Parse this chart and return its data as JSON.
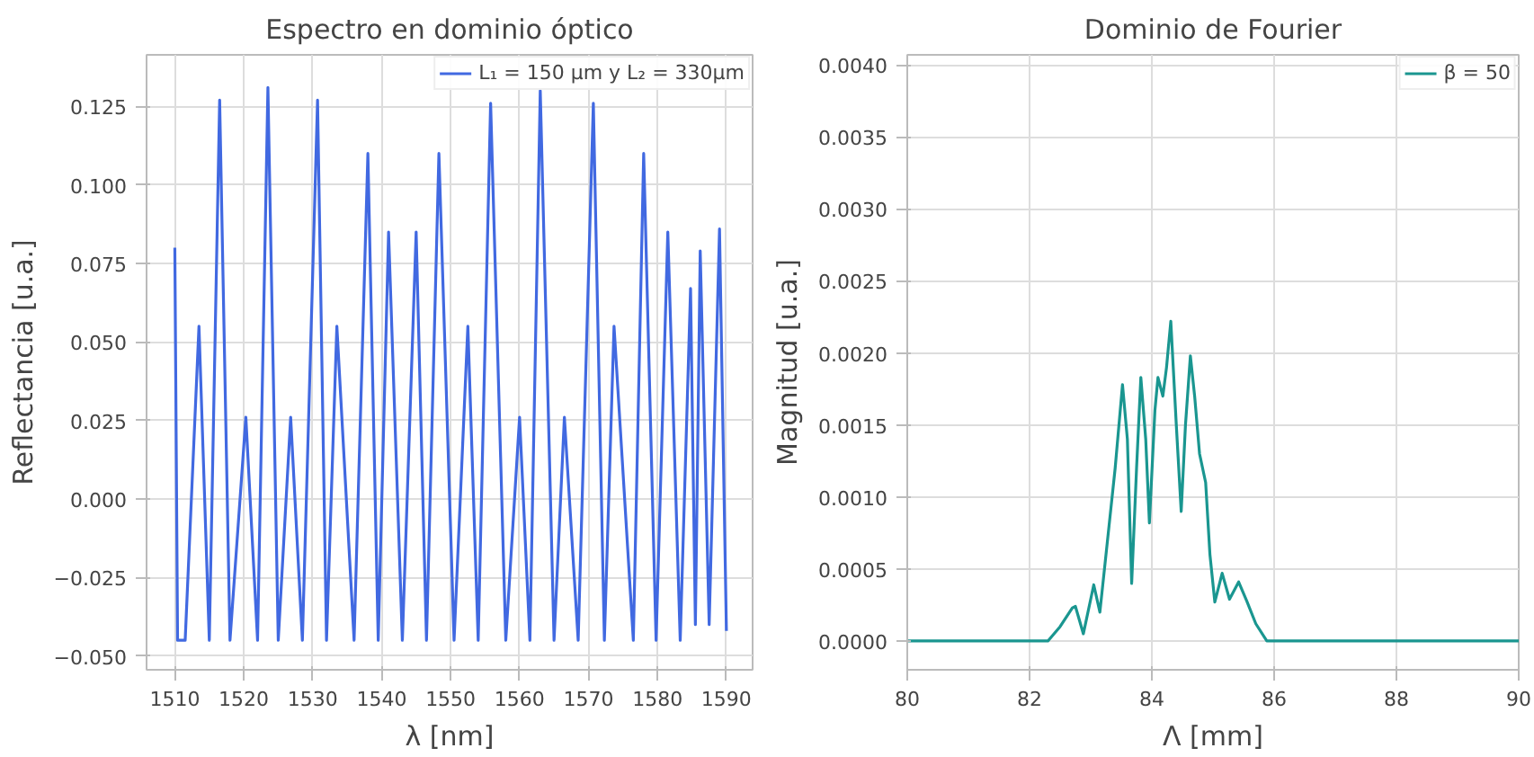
{
  "chart_data": [
    {
      "type": "line",
      "title": "Espectro en dominio óptico",
      "xlabel": "λ [nm]",
      "ylabel": "Reflectancia [u.a.]",
      "series": [
        {
          "name": "L₁ = 150 μm y L₂ = 330μm",
          "color": "#4169e1",
          "x": [
            1510,
            1510.4,
            1511.5,
            1513.5,
            1515,
            1516.5,
            1518,
            1520.3,
            1522,
            1523.5,
            1525,
            1526.8,
            1528.5,
            1530.7,
            1532,
            1533.5,
            1536,
            1538,
            1539.5,
            1541,
            1543,
            1545,
            1546.5,
            1548.3,
            1550.5,
            1552.5,
            1554,
            1555.8,
            1558,
            1560,
            1561.5,
            1563,
            1565,
            1566.5,
            1568.5,
            1570.7,
            1572.3,
            1573.7,
            1576.5,
            1578,
            1579.8,
            1581.5,
            1583.3,
            1584.8,
            1585.5,
            1586.2,
            1587.5,
            1589,
            1590
          ],
          "values": [
            0.08,
            -0.045,
            -0.045,
            0.055,
            -0.045,
            0.127,
            -0.045,
            0.026,
            -0.045,
            0.131,
            -0.045,
            0.026,
            -0.045,
            0.127,
            -0.045,
            0.055,
            -0.045,
            0.11,
            -0.045,
            0.085,
            -0.045,
            0.085,
            -0.045,
            0.11,
            -0.045,
            0.055,
            -0.045,
            0.126,
            -0.045,
            0.026,
            -0.045,
            0.13,
            -0.045,
            0.026,
            -0.045,
            0.126,
            -0.045,
            0.055,
            -0.045,
            0.11,
            -0.045,
            0.085,
            -0.045,
            0.067,
            -0.04,
            0.079,
            -0.04,
            0.086,
            -0.042
          ]
        }
      ],
      "xlim": [
        1505.9,
        1593.8
      ],
      "xticks": [
        1510,
        1520,
        1530,
        1540,
        1550,
        1560,
        1570,
        1580,
        1590
      ],
      "ylim": [
        -0.0544,
        0.1414
      ],
      "yticks": [
        {
          "value": -0.05,
          "label": "−0.050"
        },
        {
          "value": -0.025,
          "label": "−0.025"
        },
        {
          "value": 0,
          "label": "0.000"
        },
        {
          "value": 0.025,
          "label": "0.025"
        },
        {
          "value": 0.05,
          "label": "0.050"
        },
        {
          "value": 0.075,
          "label": "0.075"
        },
        {
          "value": 0.1,
          "label": "0.100"
        },
        {
          "value": 0.125,
          "label": "0.125"
        }
      ],
      "grid": true,
      "legend": "top right"
    },
    {
      "type": "line",
      "title": "Dominio de Fourier",
      "xlabel": "Λ [mm]",
      "ylabel": "Magnitud [u.a.]",
      "series": [
        {
          "name": "β = 50",
          "color": "#1a9690",
          "x": [
            80,
            82,
            82.3,
            82.5,
            82.7,
            82.75,
            82.88,
            83.05,
            83.15,
            83.3,
            83.4,
            83.52,
            83.6,
            83.67,
            83.75,
            83.82,
            83.9,
            83.96,
            84.05,
            84.1,
            84.18,
            84.24,
            84.31,
            84.4,
            84.48,
            84.55,
            84.63,
            84.7,
            84.78,
            84.88,
            84.95,
            85.03,
            85.15,
            85.27,
            85.42,
            85.55,
            85.7,
            85.88,
            86.2,
            86.6,
            90
          ],
          "values": [
            0,
            0,
            0,
            0.0001,
            0.00023,
            0.00024,
            5e-05,
            0.00039,
            0.0002,
            0.0008,
            0.0012,
            0.00178,
            0.0014,
            0.0004,
            0.0012,
            0.00183,
            0.0014,
            0.00082,
            0.0016,
            0.00183,
            0.0017,
            0.0019,
            0.00222,
            0.0015,
            0.0009,
            0.0015,
            0.00198,
            0.0017,
            0.0013,
            0.0011,
            0.0006,
            0.00027,
            0.00047,
            0.00029,
            0.00041,
            0.00028,
            0.00012,
            0,
            0,
            0,
            0
          ]
        }
      ],
      "xlim": [
        80,
        90
      ],
      "xticks": [
        80,
        82,
        84,
        86,
        88,
        90
      ],
      "ylim": [
        -0.0002,
        0.00407
      ],
      "yticks": [
        {
          "value": 0,
          "label": "0.0000"
        },
        {
          "value": 0.0005,
          "label": "0.0005"
        },
        {
          "value": 0.001,
          "label": "0.0010"
        },
        {
          "value": 0.0015,
          "label": "0.0015"
        },
        {
          "value": 0.002,
          "label": "0.0020"
        },
        {
          "value": 0.0025,
          "label": "0.0025"
        },
        {
          "value": 0.003,
          "label": "0.0030"
        },
        {
          "value": 0.0035,
          "label": "0.0035"
        },
        {
          "value": 0.004,
          "label": "0.0040"
        }
      ],
      "grid": true,
      "legend": "top right"
    }
  ]
}
